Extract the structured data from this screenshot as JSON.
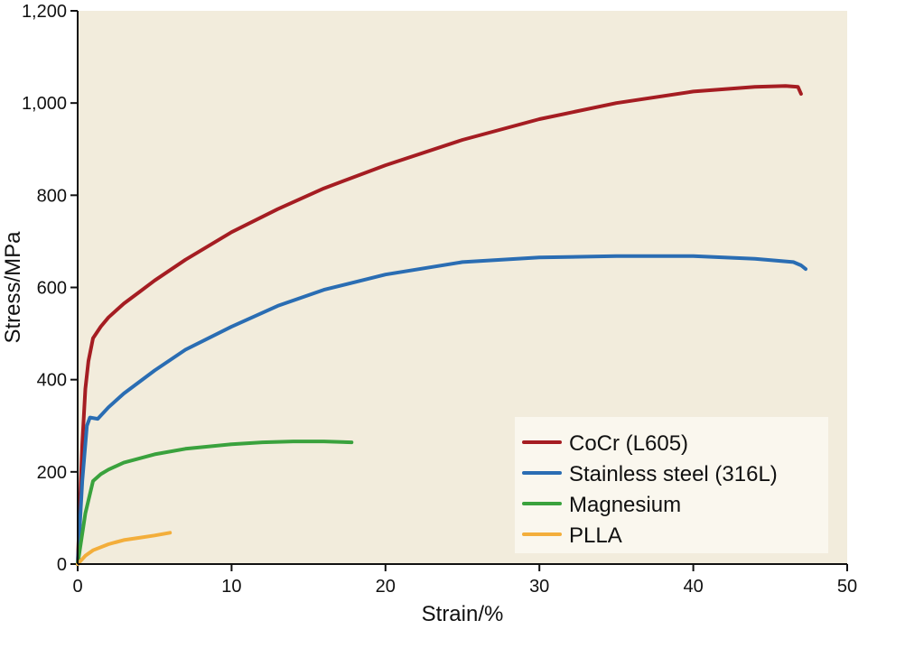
{
  "chart_data": {
    "type": "line",
    "title": "",
    "xlabel": "Strain/%",
    "ylabel": "Stress/MPa",
    "xlim": [
      0,
      50
    ],
    "ylim": [
      0,
      1200
    ],
    "x_ticks": [
      "0",
      "10",
      "20",
      "30",
      "40",
      "50"
    ],
    "y_ticks": [
      "0",
      "200",
      "400",
      "600",
      "800",
      "1,000",
      "1,200"
    ],
    "grid": false,
    "legend_position": "bottom-right",
    "background_color": "#f2ecdc",
    "series": [
      {
        "name": "CoCr (L605)",
        "color": "#a51d22",
        "points": [
          [
            0,
            0
          ],
          [
            0.3,
            260
          ],
          [
            0.5,
            380
          ],
          [
            0.7,
            440
          ],
          [
            1.0,
            490
          ],
          [
            1.5,
            515
          ],
          [
            2,
            535
          ],
          [
            3,
            565
          ],
          [
            4,
            590
          ],
          [
            5,
            615
          ],
          [
            7,
            660
          ],
          [
            10,
            720
          ],
          [
            13,
            770
          ],
          [
            16,
            815
          ],
          [
            20,
            865
          ],
          [
            25,
            920
          ],
          [
            30,
            965
          ],
          [
            35,
            1000
          ],
          [
            40,
            1025
          ],
          [
            44,
            1035
          ],
          [
            46,
            1037
          ],
          [
            46.8,
            1035
          ],
          [
            47,
            1020
          ]
        ]
      },
      {
        "name": "Stainless steel (316L)",
        "color": "#2a6db3",
        "points": [
          [
            0,
            0
          ],
          [
            0.3,
            180
          ],
          [
            0.6,
            300
          ],
          [
            0.8,
            318
          ],
          [
            1.3,
            315
          ],
          [
            2,
            340
          ],
          [
            3,
            370
          ],
          [
            5,
            420
          ],
          [
            7,
            465
          ],
          [
            10,
            515
          ],
          [
            13,
            560
          ],
          [
            16,
            595
          ],
          [
            20,
            628
          ],
          [
            25,
            655
          ],
          [
            30,
            665
          ],
          [
            35,
            668
          ],
          [
            40,
            668
          ],
          [
            44,
            662
          ],
          [
            46.5,
            655
          ],
          [
            47,
            648
          ],
          [
            47.3,
            640
          ]
        ]
      },
      {
        "name": "Magnesium",
        "color": "#3aa23d",
        "points": [
          [
            0,
            0
          ],
          [
            0.5,
            110
          ],
          [
            1.0,
            180
          ],
          [
            1.5,
            195
          ],
          [
            2,
            205
          ],
          [
            3,
            220
          ],
          [
            5,
            238
          ],
          [
            7,
            250
          ],
          [
            10,
            260
          ],
          [
            12,
            264
          ],
          [
            14,
            266
          ],
          [
            16,
            266
          ],
          [
            17.8,
            264
          ]
        ]
      },
      {
        "name": "PLLA",
        "color": "#f3ae3b",
        "points": [
          [
            0,
            0
          ],
          [
            0.5,
            18
          ],
          [
            1,
            30
          ],
          [
            2,
            43
          ],
          [
            3,
            52
          ],
          [
            4,
            57
          ],
          [
            5,
            62
          ],
          [
            6,
            68
          ]
        ]
      }
    ]
  }
}
